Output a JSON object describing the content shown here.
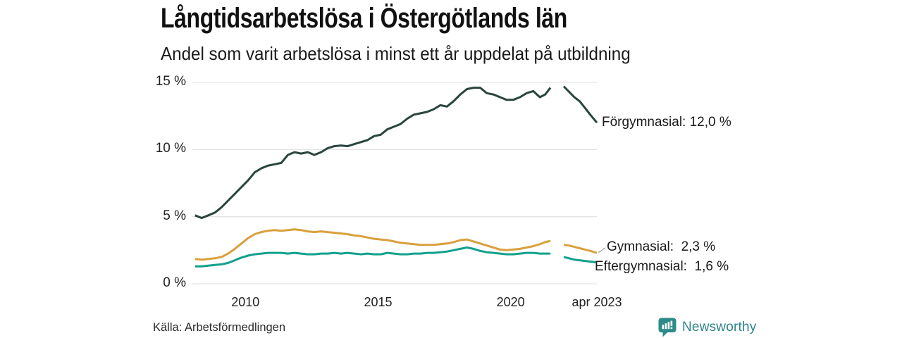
{
  "header": {
    "title": "Långtidsarbetslösa i Östergötlands län",
    "subtitle": "Andel som varit arbetslösa i minst ett år uppdelat på utbildning"
  },
  "footer": {
    "source": "Källa: Arbetsförmedlingen",
    "brand": "Newsworthy"
  },
  "colors": {
    "forgymnasial": "#28453e",
    "gymnasial": "#d9a03c",
    "eftergymnasial": "#12a08d",
    "gridline": "#e4e4e4",
    "connector": "#999999",
    "text": "#1a1a1a",
    "brand_teal": "#2d8588"
  },
  "chart_data": {
    "type": "line",
    "title": "Långtidsarbetslösa i Östergötlands län",
    "subtitle": "Andel som varit arbetslösa i minst ett år uppdelat på utbildning",
    "xlabel": "",
    "ylabel": "",
    "grid": "horizontal gridlines only",
    "legend_position": "end-of-line labels, right side",
    "ylim": [
      0,
      15
    ],
    "x_range": [
      2008,
      2023.25
    ],
    "gap_note": "all series have a data gap between 2021.5 and 2022.0",
    "yticks": [
      {
        "value": 15,
        "label": "15 %"
      },
      {
        "value": 10,
        "label": "10 %"
      },
      {
        "value": 5,
        "label": "5 %"
      },
      {
        "value": 0,
        "label": "0 %"
      }
    ],
    "xticks": [
      {
        "value": 2010,
        "label": "2010"
      },
      {
        "value": 2015,
        "label": "2015"
      },
      {
        "value": 2020,
        "label": "2020"
      },
      {
        "value": 2023.25,
        "label": "apr 2023"
      }
    ],
    "x": [
      2008.1,
      2008.35,
      2008.6,
      2008.85,
      2009.1,
      2009.35,
      2009.6,
      2009.85,
      2010.1,
      2010.35,
      2010.6,
      2010.85,
      2011.1,
      2011.35,
      2011.6,
      2011.85,
      2012.1,
      2012.35,
      2012.6,
      2012.85,
      2013.1,
      2013.35,
      2013.6,
      2013.85,
      2014.1,
      2014.35,
      2014.6,
      2014.85,
      2015.1,
      2015.35,
      2015.6,
      2015.85,
      2016.1,
      2016.35,
      2016.6,
      2016.85,
      2017.1,
      2017.35,
      2017.6,
      2017.85,
      2018.1,
      2018.35,
      2018.6,
      2018.85,
      2019.1,
      2019.35,
      2019.6,
      2019.85,
      2020.1,
      2020.35,
      2020.6,
      2020.85,
      2021.1,
      2021.3,
      2021.5,
      2021.75,
      2022.0,
      2022.2,
      2022.4,
      2022.6,
      2022.8,
      2023.0,
      2023.25
    ],
    "series": [
      {
        "name": "Förgymnasial",
        "end_label": "Förgymnasial: 12,0 %",
        "latest_value": "12,0 %",
        "color_key": "forgymnasial",
        "values": [
          5.1,
          4.9,
          5.1,
          5.3,
          5.7,
          6.2,
          6.7,
          7.2,
          7.7,
          8.3,
          8.6,
          8.8,
          8.9,
          9.0,
          9.6,
          9.8,
          9.7,
          9.8,
          9.6,
          9.8,
          10.1,
          10.25,
          10.3,
          10.25,
          10.4,
          10.55,
          10.7,
          11.0,
          11.1,
          11.5,
          11.7,
          11.9,
          12.3,
          12.6,
          12.7,
          12.8,
          13.0,
          13.3,
          13.2,
          13.6,
          14.1,
          14.5,
          14.6,
          14.6,
          14.2,
          14.1,
          13.9,
          13.7,
          13.7,
          13.9,
          14.2,
          14.35,
          13.9,
          14.1,
          14.6,
          null,
          14.7,
          14.3,
          13.9,
          13.6,
          13.1,
          12.6,
          12.0
        ]
      },
      {
        "name": "Gymnasial",
        "end_label": "Gymnasial:  2,3 %",
        "latest_value": "2,3 %",
        "color_key": "gymnasial",
        "values": [
          1.85,
          1.8,
          1.85,
          1.9,
          2.0,
          2.25,
          2.6,
          3.0,
          3.4,
          3.7,
          3.85,
          3.95,
          4.0,
          3.95,
          4.0,
          4.05,
          4.0,
          3.9,
          3.85,
          3.9,
          3.85,
          3.8,
          3.75,
          3.7,
          3.6,
          3.55,
          3.45,
          3.35,
          3.3,
          3.25,
          3.15,
          3.05,
          3.0,
          2.95,
          2.9,
          2.9,
          2.9,
          2.95,
          3.0,
          3.1,
          3.25,
          3.3,
          3.15,
          3.0,
          2.85,
          2.7,
          2.55,
          2.5,
          2.55,
          2.6,
          2.7,
          2.8,
          2.95,
          3.1,
          3.2,
          null,
          2.9,
          2.85,
          2.75,
          2.65,
          2.55,
          2.45,
          2.3
        ]
      },
      {
        "name": "Eftergymnasial",
        "end_label": "Eftergymnasial:  1,6 %",
        "latest_value": "1,6 %",
        "color_key": "eftergymnasial",
        "values": [
          1.3,
          1.3,
          1.35,
          1.4,
          1.45,
          1.55,
          1.75,
          1.95,
          2.1,
          2.2,
          2.25,
          2.3,
          2.3,
          2.3,
          2.25,
          2.3,
          2.25,
          2.2,
          2.2,
          2.25,
          2.25,
          2.3,
          2.25,
          2.3,
          2.25,
          2.2,
          2.25,
          2.2,
          2.2,
          2.3,
          2.25,
          2.2,
          2.2,
          2.25,
          2.25,
          2.3,
          2.3,
          2.35,
          2.4,
          2.5,
          2.6,
          2.7,
          2.6,
          2.45,
          2.35,
          2.3,
          2.25,
          2.2,
          2.2,
          2.25,
          2.3,
          2.3,
          2.25,
          2.25,
          2.25,
          null,
          2.0,
          1.9,
          1.8,
          1.75,
          1.7,
          1.65,
          1.6
        ]
      }
    ]
  }
}
